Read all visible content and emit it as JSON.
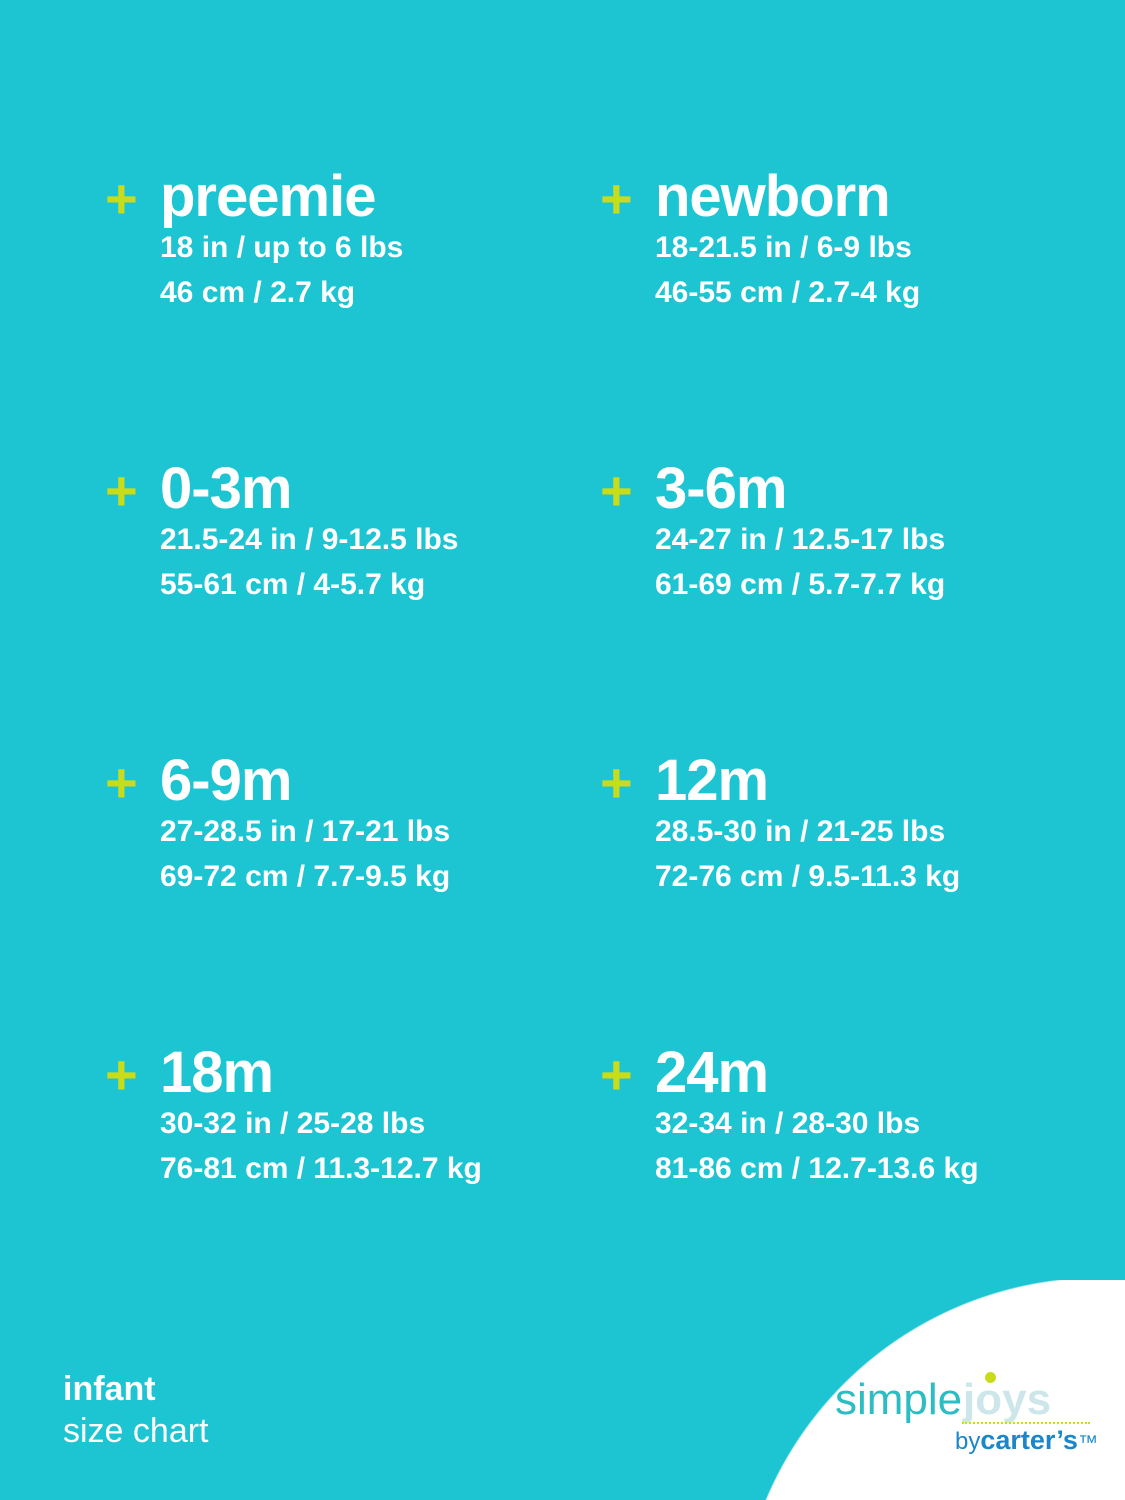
{
  "colors": {
    "background": "#1dc5d3",
    "accent_plus": "#c9dc1a",
    "text": "#ffffff",
    "logo_teal": "#2bbcc4",
    "logo_blue": "#1b87c9"
  },
  "sizes": [
    {
      "title": "preemie",
      "imperial": "18 in / up to 6 lbs",
      "metric": "46 cm / 2.7 kg"
    },
    {
      "title": "newborn",
      "imperial": "18-21.5 in / 6-9 lbs",
      "metric": "46-55 cm / 2.7-4 kg"
    },
    {
      "title": "0-3m",
      "imperial": "21.5-24 in / 9-12.5 lbs",
      "metric": "55-61 cm / 4-5.7 kg"
    },
    {
      "title": "3-6m",
      "imperial": "24-27 in / 12.5-17 lbs",
      "metric": "61-69 cm / 5.7-7.7 kg"
    },
    {
      "title": "6-9m",
      "imperial": "27-28.5 in / 17-21 lbs",
      "metric": "69-72 cm / 7.7-9.5 kg"
    },
    {
      "title": "12m",
      "imperial": "28.5-30 in / 21-25 lbs",
      "metric": "72-76 cm / 9.5-11.3 kg"
    },
    {
      "title": "18m",
      "imperial": "30-32 in / 25-28 lbs",
      "metric": "76-81 cm / 11.3-12.7 kg"
    },
    {
      "title": "24m",
      "imperial": "32-34 in / 28-30 lbs",
      "metric": "81-86 cm / 12.7-13.6 kg"
    }
  ],
  "plus_symbol": "+",
  "footer": {
    "line1": "infant",
    "line2": "size chart"
  },
  "logo": {
    "simple": "simple",
    "joys": "joys",
    "by": "by",
    "brand": "carter’s",
    "tm": "™"
  }
}
